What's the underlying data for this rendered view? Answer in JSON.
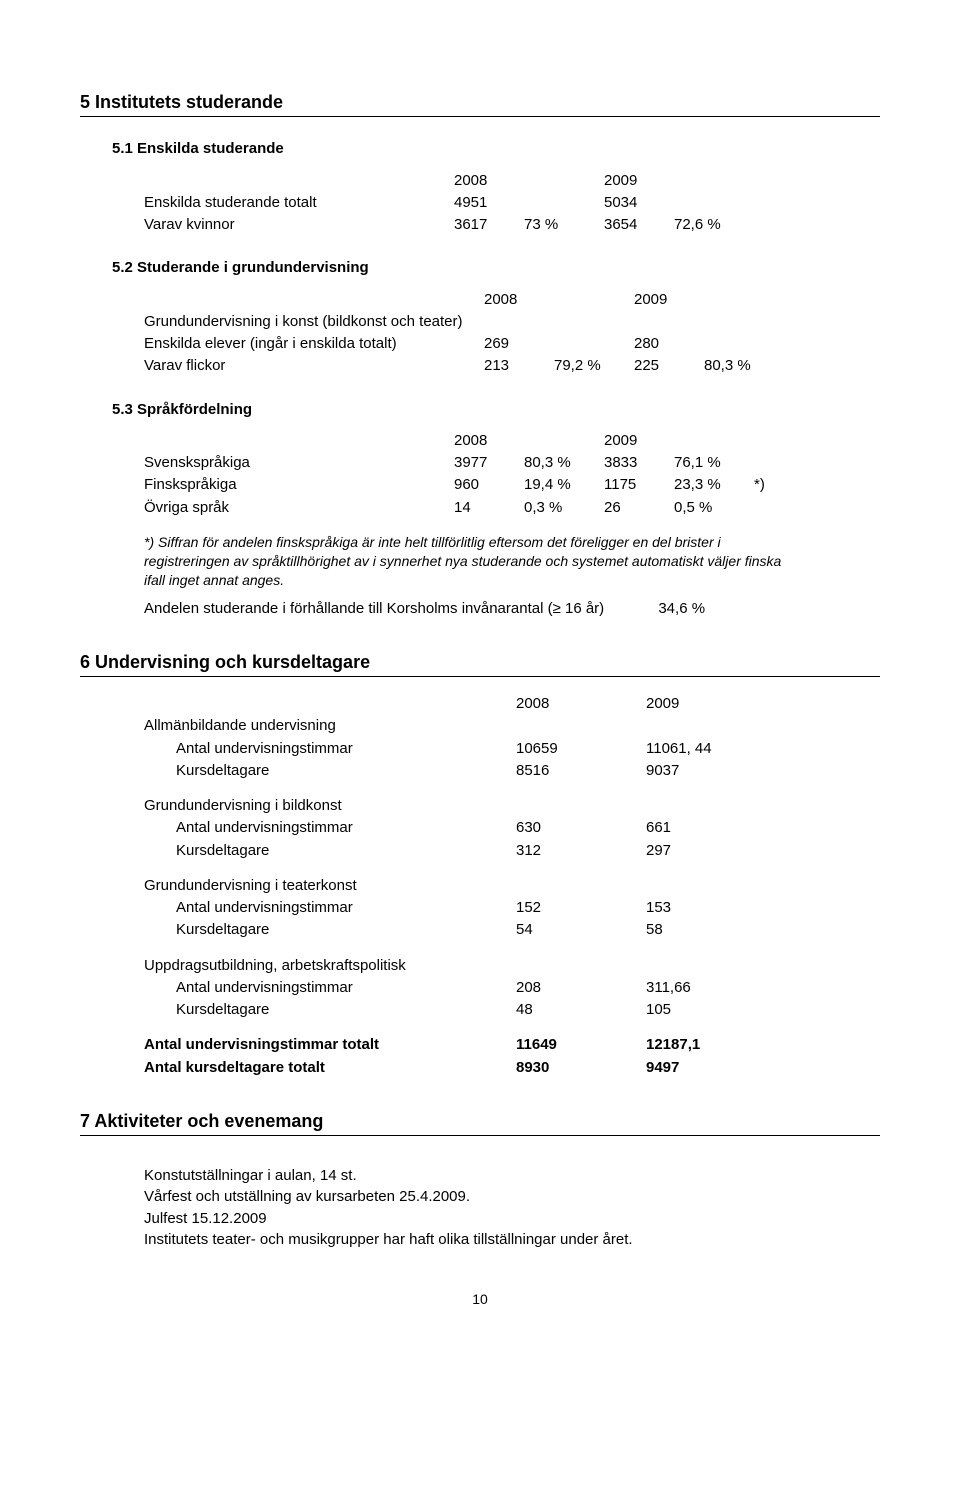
{
  "s5": {
    "heading": "5   Institutets studerande",
    "s51": {
      "heading": "5.1   Enskilda studerande",
      "header": [
        "2008",
        "2009"
      ],
      "rows": [
        {
          "label": "Enskilda studerande totalt",
          "v1": "4951",
          "p1": "",
          "v2": "5034",
          "p2": ""
        },
        {
          "label": "Varav kvinnor",
          "v1": "3617",
          "p1": "73 %",
          "v2": "3654",
          "p2": "72,6 %"
        }
      ]
    },
    "s52": {
      "heading": "5.2   Studerande i grundundervisning",
      "header": [
        "2008",
        "2009"
      ],
      "intro": "Grundundervisning i konst (bildkonst och teater)",
      "rows": [
        {
          "label": "Enskilda elever (ingår i enskilda totalt)",
          "v1": "269",
          "p1": "",
          "v2": "280",
          "p2": ""
        },
        {
          "label": "Varav flickor",
          "v1": "213",
          "p1": "79,2 %",
          "v2": "225",
          "p2": "80,3 %"
        }
      ]
    },
    "s53": {
      "heading": "5.3   Språkfördelning",
      "header": [
        "2008",
        "2009"
      ],
      "rows": [
        {
          "label": "Svenskspråkiga",
          "v1": "3977",
          "p1": "80,3 %",
          "v2": "3833",
          "p2": "76,1 %",
          "extra": ""
        },
        {
          "label": "Finskspråkiga",
          "v1": "960",
          "p1": "19,4 %",
          "v2": "1175",
          "p2": "23,3 %",
          "extra": "*)"
        },
        {
          "label": "Övriga språk",
          "v1": "14",
          "p1": "0,3 %",
          "v2": "26",
          "p2": "0,5 %",
          "extra": ""
        }
      ],
      "note": "*) Siffran för andelen finskspråkiga är inte helt tillförlitlig eftersom det föreligger en del brister i registreringen av språktillhörighet av i synnerhet nya studerande och systemet automatiskt väljer finska ifall inget annat anges.",
      "line": "Andelen studerande i förhållande till Korsholms invånarantal (≥ 16 år)",
      "line_pct": "34,6 %"
    }
  },
  "s6": {
    "heading": "6   Undervisning och kursdeltagare",
    "header": [
      "2008",
      "2009"
    ],
    "groups": [
      {
        "title": "Allmänbildande undervisning",
        "rows": [
          {
            "label": "Antal undervisningstimmar",
            "v1": "10659",
            "v2": "11061, 44"
          },
          {
            "label": "Kursdeltagare",
            "v1": "8516",
            "v2": "9037"
          }
        ]
      },
      {
        "title": "Grundundervisning i bildkonst",
        "rows": [
          {
            "label": "Antal undervisningstimmar",
            "v1": "630",
            "v2": "661"
          },
          {
            "label": "Kursdeltagare",
            "v1": "312",
            "v2": "297"
          }
        ]
      },
      {
        "title": "Grundundervisning i teaterkonst",
        "rows": [
          {
            "label": "Antal undervisningstimmar",
            "v1": "152",
            "v2": "153"
          },
          {
            "label": "Kursdeltagare",
            "v1": "54",
            "v2": "58"
          }
        ]
      },
      {
        "title": "Uppdragsutbildning, arbetskraftspolitisk",
        "rows": [
          {
            "label": "Antal undervisningstimmar",
            "v1": "208",
            "v2": "311,66"
          },
          {
            "label": "Kursdeltagare",
            "v1": "48",
            "v2": "105"
          }
        ]
      }
    ],
    "totals": [
      {
        "label": "Antal undervisningstimmar totalt",
        "v1": "11649",
        "v2": "12187,1"
      },
      {
        "label": "Antal kursdeltagare totalt",
        "v1": "8930",
        "v2": "9497"
      }
    ]
  },
  "s7": {
    "heading": "7   Aktiviteter och evenemang",
    "lines": [
      "Konstutställningar i aulan, 14 st.",
      "Vårfest och utställning av kursarbeten 25.4.2009.",
      "Julfest 15.12.2009",
      "Institutets teater- och musikgrupper har haft olika tillställningar under året."
    ]
  },
  "pagenum": "10"
}
